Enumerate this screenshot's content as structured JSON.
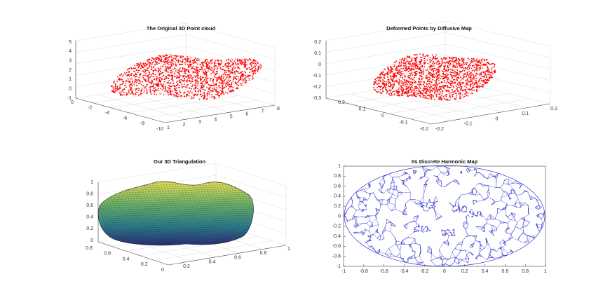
{
  "panels": [
    {
      "title": "The Original 3D Point cloud",
      "zticks": [
        5,
        4,
        3,
        2,
        1,
        0,
        -1
      ],
      "yticks": [
        0,
        -2,
        -4,
        -6,
        -8,
        -10
      ],
      "xticks": [
        1,
        2,
        3,
        4,
        5,
        6,
        7,
        8
      ]
    },
    {
      "title": "Deformed Points by Diffusive Map",
      "zticks": [
        0.2,
        0.1,
        0,
        -0.1,
        -0.2,
        -0.3
      ],
      "yticks": [
        0.2,
        0.1,
        0,
        -0.1,
        -0.2
      ],
      "xticks": [
        -0.2,
        -0.1,
        0,
        0.1,
        0.2
      ]
    },
    {
      "title": "Our 3D Triangulation",
      "zticks": [
        1,
        0.8,
        0.6,
        0.4,
        0.2,
        0
      ],
      "yticks": [
        0.8,
        0.6,
        0.4,
        0.2,
        0
      ],
      "xticks": [
        0.2,
        0.4,
        0.6,
        0.8,
        1
      ]
    },
    {
      "title": "Its Discrete Harmonic Map",
      "xlim": [
        -1,
        1
      ],
      "ylim": [
        -1,
        1
      ],
      "xticks": [
        -1,
        -0.8,
        -0.6,
        -0.4,
        -0.2,
        0,
        0.2,
        0.4,
        0.6,
        0.8,
        1
      ],
      "yticks": [
        1,
        0.8,
        0.6,
        0.4,
        0.2,
        0,
        -0.2,
        -0.4,
        -0.6,
        -0.8,
        -1
      ]
    }
  ]
}
